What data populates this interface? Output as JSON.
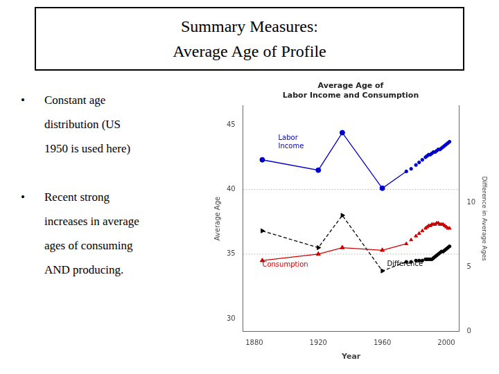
{
  "title": [
    "Summary Measures:",
    "Average Age of Profile"
  ],
  "text": [
    {
      "bullet": "•",
      "lines": [
        "Constant age",
        "distribution (US",
        "1950 is used here)"
      ]
    },
    {
      "bullet": "•",
      "lines": [
        "Recent strong",
        "increases in average",
        "ages of consuming",
        "AND producing."
      ]
    }
  ],
  "chart_data": {
    "type": "line",
    "title": [
      "Average Age of",
      "Labor Income and Consumption"
    ],
    "xlabel": "Year",
    "ylabel": "Average Age",
    "y2label": "Difference in Average Ages",
    "xlim": [
      1873,
      2008
    ],
    "xticks": [
      1880,
      1920,
      1960,
      2000
    ],
    "ylim": [
      29.0,
      46.5
    ],
    "yticks": [
      30,
      35,
      40,
      45
    ],
    "y2lim": [
      0,
      17.5
    ],
    "y2ticks": [
      0,
      5,
      10
    ],
    "grid": false,
    "hlines": {
      "values": [
        35,
        40
      ],
      "color": "#aaaaaa",
      "line_style": "dotted"
    },
    "series": [
      {
        "type": "line",
        "color": "#0000cc",
        "marker": "circle",
        "line_style": "solid",
        "x": [
          1885,
          1920,
          1935,
          1960
        ],
        "values": [
          42.3,
          41.5,
          44.4,
          40.1
        ]
      },
      {
        "type": "scatter",
        "color": "#0000cc",
        "marker": "circle",
        "x": [
          1975,
          1978,
          1981,
          1983,
          1985,
          1987,
          1988,
          1989,
          1990,
          1991,
          1992,
          1993,
          1994,
          1995,
          1996,
          1997,
          1998,
          1999,
          2000,
          2001,
          2002
        ],
        "values": [
          41.4,
          41.6,
          41.9,
          42.1,
          42.3,
          42.5,
          42.6,
          42.7,
          42.7,
          42.8,
          42.9,
          42.9,
          43.0,
          43.1,
          43.1,
          43.2,
          43.3,
          43.4,
          43.5,
          43.6,
          43.7
        ]
      },
      {
        "type": "line",
        "color": "#cc0000",
        "marker": "triangle",
        "line_style": "solid",
        "x": [
          1885,
          1920,
          1935,
          1960
        ],
        "values": [
          34.5,
          35.0,
          35.5,
          35.3
        ]
      },
      {
        "type": "scatter",
        "color": "#cc0000",
        "marker": "triangle",
        "x": [
          1975,
          1978,
          1981,
          1983,
          1985,
          1987,
          1988,
          1989,
          1990,
          1991,
          1992,
          1993,
          1994,
          1995,
          1996,
          1997,
          1998,
          1999,
          2000,
          2001,
          2002
        ],
        "values": [
          35.8,
          36.1,
          36.4,
          36.6,
          36.8,
          37.0,
          37.1,
          37.2,
          37.2,
          37.3,
          37.3,
          37.3,
          37.4,
          37.4,
          37.3,
          37.3,
          37.3,
          37.2,
          37.1,
          37.0,
          37.0
        ]
      },
      {
        "type": "line",
        "color": "#000000",
        "marker": "triangle-right",
        "line_style": "dashed",
        "axis": "y2",
        "x": [
          1885,
          1920,
          1935,
          1960
        ],
        "values": [
          7.8,
          6.5,
          9.0,
          4.7
        ]
      },
      {
        "type": "scatter",
        "color": "#000000",
        "marker": "circle",
        "axis": "y2",
        "x": [
          1975,
          1978,
          1981,
          1983,
          1985,
          1987,
          1988,
          1989,
          1990,
          1991,
          1992,
          1993,
          1994,
          1995,
          1996,
          1997,
          1998,
          1999,
          2000,
          2001,
          2002
        ],
        "values": [
          5.4,
          5.4,
          5.5,
          5.5,
          5.5,
          5.6,
          5.6,
          5.6,
          5.6,
          5.6,
          5.7,
          5.8,
          5.9,
          6.0,
          6.1,
          6.2,
          6.2,
          6.3,
          6.4,
          6.5,
          6.6
        ]
      }
    ],
    "annotations": [
      {
        "text": "Labor\nIncome",
        "x": 1895,
        "y": 43.2,
        "color": "#0000cc"
      },
      {
        "text": "Consumption",
        "x": 1885,
        "y": 34.05,
        "color": "#cc0000"
      },
      {
        "text": "Difference",
        "x": 1963,
        "y": 5.1,
        "color": "#000000",
        "axis": "y2"
      }
    ]
  }
}
